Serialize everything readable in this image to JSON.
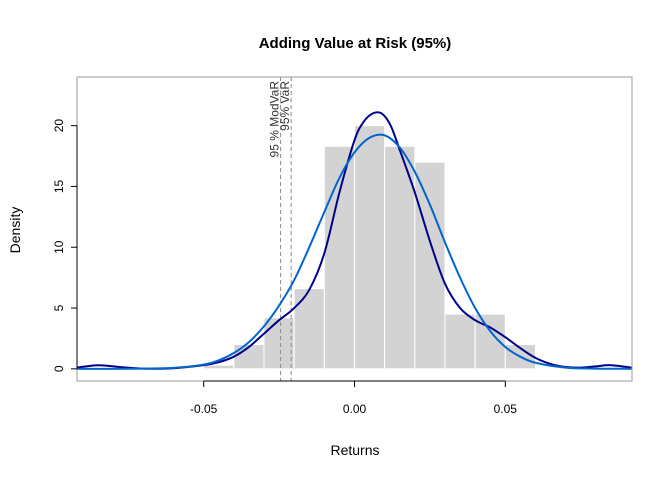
{
  "chart_data": {
    "type": "bar",
    "title": "Adding Value at Risk (95%)",
    "xlabel": "Returns",
    "ylabel": "Density",
    "xlim": [
      -0.092,
      0.092
    ],
    "ylim": [
      -1,
      24
    ],
    "x_ticks": [
      -0.05,
      0.0,
      0.05
    ],
    "x_tick_labels": [
      "-0.05",
      "0.00",
      "0.05"
    ],
    "y_ticks": [
      0,
      5,
      10,
      15,
      20
    ],
    "y_tick_labels": [
      "0",
      "5",
      "10",
      "15",
      "20"
    ],
    "grid": false,
    "histogram": {
      "color": "#d3d3d3",
      "bins": [
        {
          "x0": -0.04,
          "x1": -0.03,
          "density": 2.0
        },
        {
          "x0": -0.03,
          "x1": -0.02,
          "density": 4.2
        },
        {
          "x0": -0.02,
          "x1": -0.01,
          "density": 6.6
        },
        {
          "x0": -0.01,
          "x1": 0.0,
          "density": 18.3
        },
        {
          "x0": 0.0,
          "x1": 0.01,
          "density": 20.0
        },
        {
          "x0": 0.01,
          "x1": 0.02,
          "density": 18.3
        },
        {
          "x0": 0.02,
          "x1": 0.03,
          "density": 17.0
        },
        {
          "x0": 0.03,
          "x1": 0.04,
          "density": 4.5
        },
        {
          "x0": 0.04,
          "x1": 0.05,
          "density": 4.5
        },
        {
          "x0": 0.05,
          "x1": 0.06,
          "density": 2.0
        }
      ],
      "extra_bins": [
        {
          "x0": -0.05,
          "x1": -0.04,
          "density": 0.3
        }
      ]
    },
    "series": [
      {
        "color": "#00008b",
        "x": [
          -0.092,
          -0.085,
          -0.078,
          -0.07,
          -0.06,
          -0.05,
          -0.045,
          -0.04,
          -0.035,
          -0.03,
          -0.025,
          -0.02,
          -0.015,
          -0.01,
          -0.005,
          0.0,
          0.003,
          0.006,
          0.009,
          0.012,
          0.015,
          0.02,
          0.025,
          0.03,
          0.035,
          0.04,
          0.045,
          0.05,
          0.055,
          0.06,
          0.065,
          0.07,
          0.075,
          0.08,
          0.085,
          0.092
        ],
        "y": [
          0.1,
          0.3,
          0.15,
          0.02,
          0.05,
          0.3,
          0.55,
          1.0,
          1.8,
          2.9,
          4.0,
          5.0,
          6.5,
          9.5,
          14.5,
          18.8,
          20.3,
          21.0,
          21.0,
          20.0,
          18.0,
          14.5,
          10.5,
          7.0,
          5.0,
          4.0,
          3.4,
          2.6,
          1.7,
          0.9,
          0.4,
          0.15,
          0.1,
          0.2,
          0.3,
          0.1
        ]
      },
      {
        "color": "#0066cc",
        "x": [
          -0.092,
          -0.08,
          -0.07,
          -0.06,
          -0.05,
          -0.045,
          -0.04,
          -0.035,
          -0.03,
          -0.025,
          -0.02,
          -0.015,
          -0.01,
          -0.005,
          0.0,
          0.005,
          0.01,
          0.015,
          0.02,
          0.025,
          0.03,
          0.035,
          0.04,
          0.045,
          0.05,
          0.055,
          0.06,
          0.07,
          0.08,
          0.092
        ],
        "y": [
          0.0,
          0.0,
          0.02,
          0.08,
          0.35,
          0.7,
          1.3,
          2.2,
          3.5,
          5.2,
          7.3,
          10.0,
          12.9,
          15.7,
          17.8,
          19.0,
          19.2,
          18.2,
          16.2,
          13.5,
          10.4,
          7.5,
          5.0,
          3.1,
          1.8,
          1.0,
          0.5,
          0.1,
          0.02,
          0.0
        ]
      }
    ],
    "vlines": [
      {
        "x": -0.0245,
        "label": "95 % ModVaR"
      },
      {
        "x": -0.021,
        "label": "95% VaR"
      }
    ]
  }
}
